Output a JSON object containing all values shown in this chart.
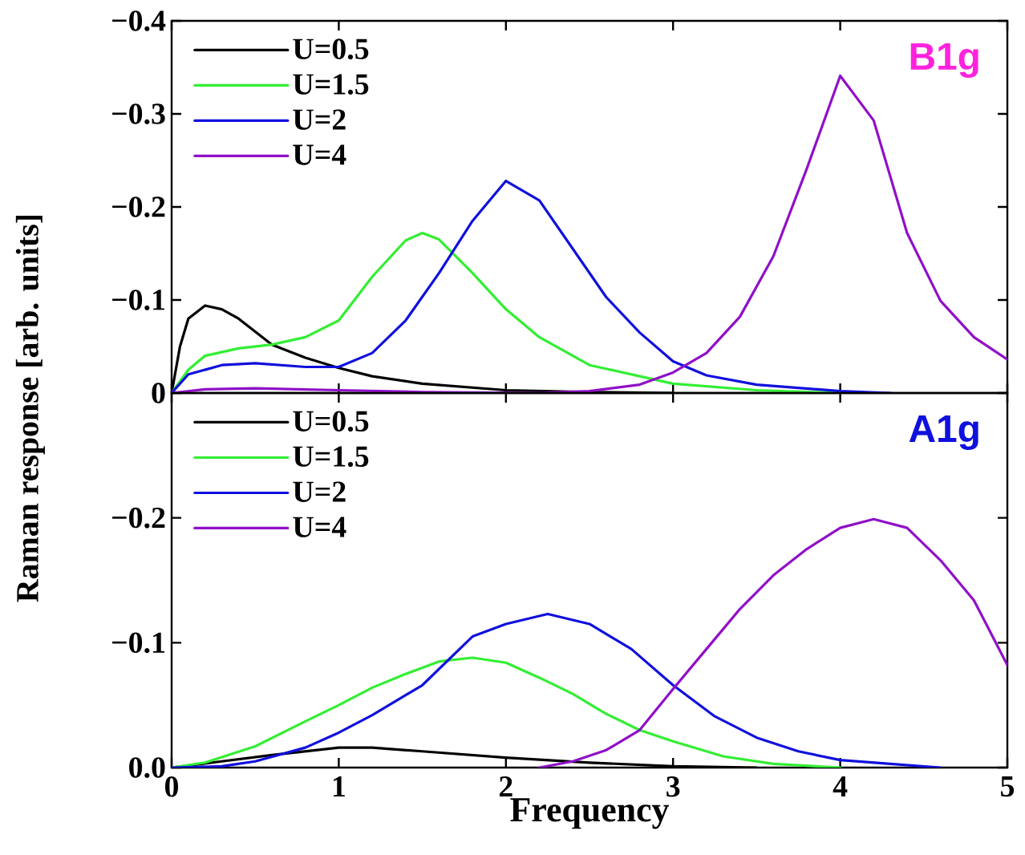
{
  "chart_data": [
    {
      "type": "line",
      "title": "B1g",
      "ylabel": "Raman response [arb. units]",
      "xlim": [
        0,
        5
      ],
      "xticks": [
        0,
        1,
        2,
        3,
        4,
        5
      ],
      "ylim": [
        0,
        -0.4
      ],
      "yticks": [
        0,
        {
          "value": -0.1,
          "label": "−0.1"
        },
        {
          "value": -0.2,
          "label": "−0.2"
        },
        {
          "value": -0.3,
          "label": "−0.3"
        },
        {
          "value": -0.4,
          "label": "−0.4"
        }
      ],
      "tick_labels": "y",
      "legend": "top left",
      "series": [
        {
          "name": "U=0.5",
          "color": "#000000",
          "x": [
            0,
            0.05,
            0.1,
            0.2,
            0.3,
            0.4,
            0.6,
            0.8,
            1,
            1.2,
            1.5,
            2,
            2.5,
            3
          ],
          "values": [
            0,
            -0.05,
            -0.08,
            -0.094,
            -0.09,
            -0.08,
            -0.052,
            -0.038,
            -0.027,
            -0.018,
            -0.01,
            -0.003,
            -0.001,
            0
          ]
        },
        {
          "name": "U=1.5",
          "color": "#33ee33",
          "x": [
            0,
            0.1,
            0.2,
            0.4,
            0.6,
            0.8,
            1,
            1.2,
            1.4,
            1.5,
            1.6,
            1.8,
            2,
            2.2,
            2.5,
            3,
            3.5,
            4
          ],
          "values": [
            0,
            -0.025,
            -0.04,
            -0.048,
            -0.052,
            -0.06,
            -0.078,
            -0.125,
            -0.164,
            -0.172,
            -0.165,
            -0.129,
            -0.09,
            -0.06,
            -0.03,
            -0.01,
            -0.003,
            0
          ]
        },
        {
          "name": "U=2",
          "color": "#1010dd",
          "x": [
            0,
            0.1,
            0.3,
            0.5,
            0.8,
            1,
            1.2,
            1.4,
            1.6,
            1.8,
            2,
            2.2,
            2.4,
            2.6,
            2.8,
            3,
            3.2,
            3.5,
            4,
            4.3
          ],
          "values": [
            0,
            -0.02,
            -0.03,
            -0.032,
            -0.028,
            -0.028,
            -0.043,
            -0.078,
            -0.129,
            -0.185,
            -0.228,
            -0.207,
            -0.155,
            -0.103,
            -0.065,
            -0.034,
            -0.019,
            -0.009,
            -0.002,
            0
          ]
        },
        {
          "name": "U=4",
          "color": "#9010c8",
          "x": [
            0,
            0.2,
            0.5,
            1,
            1.5,
            2.2,
            2.5,
            2.8,
            3,
            3.2,
            3.4,
            3.6,
            3.8,
            4,
            4.2,
            4.4,
            4.6,
            4.8,
            5
          ],
          "values": [
            0,
            -0.004,
            -0.005,
            -0.003,
            -0.001,
            0,
            -0.002,
            -0.009,
            -0.022,
            -0.043,
            -0.082,
            -0.147,
            -0.241,
            -0.341,
            -0.293,
            -0.172,
            -0.099,
            -0.06,
            -0.036
          ]
        }
      ]
    },
    {
      "type": "line",
      "title": "A1g",
      "xlabel": "Frequency",
      "xlim": [
        0,
        5
      ],
      "xticks": [
        0,
        1,
        2,
        3,
        4,
        5
      ],
      "ylim": [
        0,
        -0.3
      ],
      "yticks": [
        {
          "value": 0,
          "label": "0.0"
        },
        {
          "value": -0.1,
          "label": "−0.1"
        },
        {
          "value": -0.2,
          "label": "−0.2"
        }
      ],
      "legend": "top left",
      "series": [
        {
          "name": "U=0.5",
          "color": "#000000",
          "x": [
            0,
            0.3,
            0.6,
            1,
            1.2,
            1.5,
            2,
            2.5,
            3,
            3.5
          ],
          "values": [
            0,
            -0.005,
            -0.01,
            -0.016,
            -0.016,
            -0.013,
            -0.008,
            -0.004,
            -0.001,
            0
          ]
        },
        {
          "name": "U=1.5",
          "color": "#33ee33",
          "x": [
            0,
            0.2,
            0.5,
            0.8,
            1,
            1.2,
            1.4,
            1.6,
            1.8,
            2,
            2.2,
            2.4,
            2.6,
            2.8,
            3,
            3.3,
            3.6,
            4
          ],
          "values": [
            0,
            -0.004,
            -0.017,
            -0.037,
            -0.05,
            -0.064,
            -0.075,
            -0.085,
            -0.088,
            -0.084,
            -0.072,
            -0.059,
            -0.043,
            -0.03,
            -0.021,
            -0.009,
            -0.003,
            0
          ]
        },
        {
          "name": "U=2",
          "color": "#1010dd",
          "x": [
            0,
            0.3,
            0.5,
            0.8,
            1,
            1.2,
            1.5,
            1.8,
            2,
            2.25,
            2.5,
            2.75,
            3,
            3.25,
            3.5,
            3.75,
            4,
            4.3,
            4.6
          ],
          "values": [
            0,
            -0.001,
            -0.005,
            -0.016,
            -0.028,
            -0.042,
            -0.066,
            -0.105,
            -0.115,
            -0.123,
            -0.115,
            -0.095,
            -0.066,
            -0.041,
            -0.024,
            -0.013,
            -0.006,
            -0.003,
            0
          ]
        },
        {
          "name": "U=4",
          "color": "#9010c8",
          "x": [
            2.2,
            2.4,
            2.6,
            2.8,
            3,
            3.2,
            3.4,
            3.6,
            3.8,
            4,
            4.2,
            4.4,
            4.6,
            4.8,
            5
          ],
          "values": [
            0,
            -0.005,
            -0.014,
            -0.03,
            -0.063,
            -0.095,
            -0.127,
            -0.154,
            -0.175,
            -0.192,
            -0.199,
            -0.192,
            -0.166,
            -0.134,
            -0.082
          ]
        }
      ]
    }
  ]
}
